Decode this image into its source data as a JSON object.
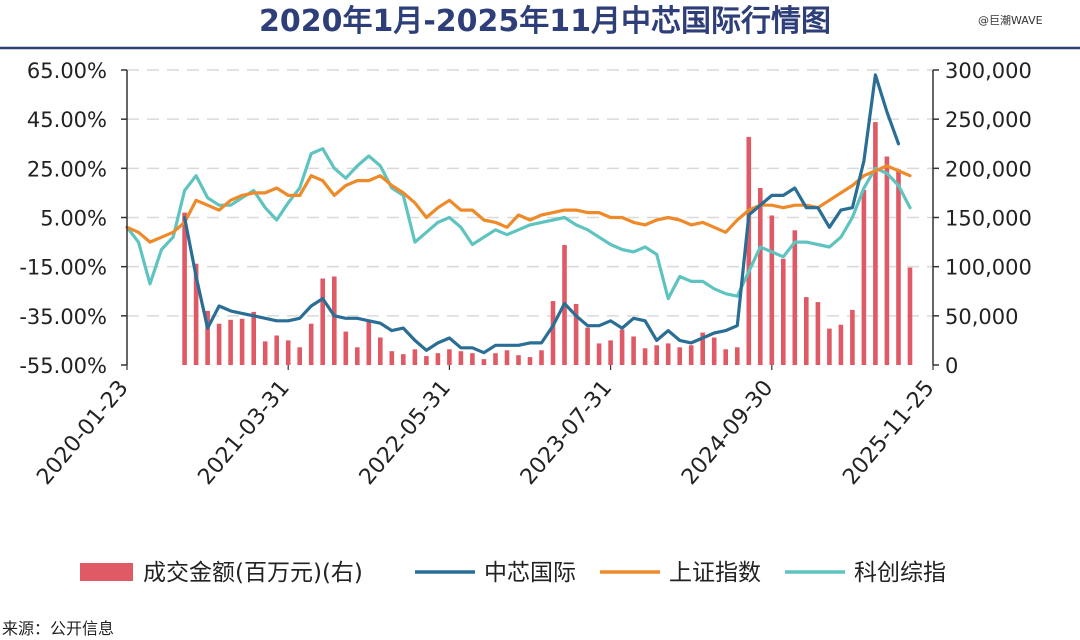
{
  "chart_data": {
    "type": "bar-line-combo",
    "title": "2020年1月-2025年11月中芯国际行情图",
    "watermark": "@巨潮WAVE",
    "source": "来源：公开信息",
    "x_ticks": [
      "2020-01-23",
      "2021-03-31",
      "2022-05-31",
      "2023-07-31",
      "2024-09-30",
      "2025-11-25"
    ],
    "y_left": {
      "ticks": [
        "65.00%",
        "45.00%",
        "25.00%",
        "5.00%",
        "-15.00%",
        "-35.00%",
        "-55.00%"
      ],
      "range": [
        -55,
        65
      ]
    },
    "y_right": {
      "ticks": [
        "300,000",
        "250,000",
        "200,000",
        "150,000",
        "100,000",
        "50,000",
        "0"
      ],
      "range": [
        0,
        300000
      ]
    },
    "legend": [
      {
        "name": "成交金额(百万元)(右)",
        "kind": "bar",
        "color": "#df5a64"
      },
      {
        "name": "中芯国际",
        "kind": "line",
        "color": "#2a6e96"
      },
      {
        "name": "上证指数",
        "kind": "line",
        "color": "#ee8a2a"
      },
      {
        "name": "科创综指",
        "kind": "line",
        "color": "#5fc4c0"
      }
    ],
    "colors": {
      "axis": "#333333",
      "grid": "#d9d9d9",
      "title": "#2d3e78",
      "divider": "#2d3e78"
    },
    "note": "横轴为月度序列，0 = 2020-01，70 = 2025-11；左轴为区间涨跌幅(%)，右轴为成交金额",
    "bars": [
      {
        "x": 5,
        "y": 155000
      },
      {
        "x": 6,
        "y": 103000
      },
      {
        "x": 7,
        "y": 55000
      },
      {
        "x": 8,
        "y": 42000
      },
      {
        "x": 9,
        "y": 46000
      },
      {
        "x": 10,
        "y": 47000
      },
      {
        "x": 11,
        "y": 54000
      },
      {
        "x": 12,
        "y": 24000
      },
      {
        "x": 13,
        "y": 30000
      },
      {
        "x": 14,
        "y": 25000
      },
      {
        "x": 15,
        "y": 18000
      },
      {
        "x": 16,
        "y": 42000
      },
      {
        "x": 17,
        "y": 88000
      },
      {
        "x": 18,
        "y": 90000
      },
      {
        "x": 19,
        "y": 34000
      },
      {
        "x": 20,
        "y": 18000
      },
      {
        "x": 21,
        "y": 45000
      },
      {
        "x": 22,
        "y": 28000
      },
      {
        "x": 23,
        "y": 14000
      },
      {
        "x": 24,
        "y": 11000
      },
      {
        "x": 25,
        "y": 16000
      },
      {
        "x": 26,
        "y": 9000
      },
      {
        "x": 27,
        "y": 12000
      },
      {
        "x": 28,
        "y": 16000
      },
      {
        "x": 29,
        "y": 14000
      },
      {
        "x": 30,
        "y": 12000
      },
      {
        "x": 31,
        "y": 6000
      },
      {
        "x": 32,
        "y": 12000
      },
      {
        "x": 33,
        "y": 15000
      },
      {
        "x": 34,
        "y": 10000
      },
      {
        "x": 35,
        "y": 8000
      },
      {
        "x": 36,
        "y": 15000
      },
      {
        "x": 37,
        "y": 65000
      },
      {
        "x": 38,
        "y": 122000
      },
      {
        "x": 39,
        "y": 62000
      },
      {
        "x": 40,
        "y": 38000
      },
      {
        "x": 41,
        "y": 22000
      },
      {
        "x": 42,
        "y": 25000
      },
      {
        "x": 43,
        "y": 36000
      },
      {
        "x": 44,
        "y": 29000
      },
      {
        "x": 45,
        "y": 17000
      },
      {
        "x": 46,
        "y": 20000
      },
      {
        "x": 47,
        "y": 22000
      },
      {
        "x": 48,
        "y": 18000
      },
      {
        "x": 49,
        "y": 20000
      },
      {
        "x": 50,
        "y": 33000
      },
      {
        "x": 51,
        "y": 28000
      },
      {
        "x": 52,
        "y": 16000
      },
      {
        "x": 53,
        "y": 18000
      },
      {
        "x": 54,
        "y": 232000
      },
      {
        "x": 55,
        "y": 180000
      },
      {
        "x": 56,
        "y": 152000
      },
      {
        "x": 57,
        "y": 108000
      },
      {
        "x": 58,
        "y": 137000
      },
      {
        "x": 59,
        "y": 69000
      },
      {
        "x": 60,
        "y": 64000
      },
      {
        "x": 61,
        "y": 37000
      },
      {
        "x": 62,
        "y": 41000
      },
      {
        "x": 63,
        "y": 56000
      },
      {
        "x": 64,
        "y": 178000
      },
      {
        "x": 65,
        "y": 247000
      },
      {
        "x": 66,
        "y": 212000
      },
      {
        "x": 67,
        "y": 199000
      },
      {
        "x": 68,
        "y": 99000
      }
    ],
    "series": [
      {
        "name": "中芯国际",
        "points": [
          [
            5,
            5
          ],
          [
            6,
            -19
          ],
          [
            7,
            -40
          ],
          [
            8,
            -31
          ],
          [
            9,
            -33
          ],
          [
            10,
            -34
          ],
          [
            11,
            -35
          ],
          [
            12,
            -36
          ],
          [
            13,
            -37
          ],
          [
            14,
            -37
          ],
          [
            15,
            -36
          ],
          [
            16,
            -31
          ],
          [
            17,
            -28
          ],
          [
            18,
            -35
          ],
          [
            19,
            -36
          ],
          [
            20,
            -36
          ],
          [
            21,
            -37
          ],
          [
            22,
            -38
          ],
          [
            23,
            -41
          ],
          [
            24,
            -40
          ],
          [
            25,
            -45
          ],
          [
            26,
            -49
          ],
          [
            27,
            -46
          ],
          [
            28,
            -44
          ],
          [
            29,
            -48
          ],
          [
            30,
            -48
          ],
          [
            31,
            -50
          ],
          [
            32,
            -47
          ],
          [
            33,
            -47
          ],
          [
            34,
            -47
          ],
          [
            35,
            -46
          ],
          [
            36,
            -46
          ],
          [
            37,
            -39
          ],
          [
            38,
            -30
          ],
          [
            39,
            -35
          ],
          [
            40,
            -39
          ],
          [
            41,
            -39
          ],
          [
            42,
            -37
          ],
          [
            43,
            -40
          ],
          [
            44,
            -36
          ],
          [
            45,
            -37
          ],
          [
            46,
            -45
          ],
          [
            47,
            -41
          ],
          [
            48,
            -45
          ],
          [
            49,
            -46
          ],
          [
            50,
            -44
          ],
          [
            51,
            -42
          ],
          [
            52,
            -41
          ],
          [
            53,
            -39
          ],
          [
            54,
            6
          ],
          [
            55,
            10
          ],
          [
            56,
            14
          ],
          [
            57,
            14
          ],
          [
            58,
            17
          ],
          [
            59,
            9
          ],
          [
            60,
            9
          ],
          [
            61,
            1
          ],
          [
            62,
            8
          ],
          [
            63,
            9
          ],
          [
            64,
            28
          ],
          [
            65,
            63
          ],
          [
            66,
            48
          ],
          [
            67,
            35
          ]
        ]
      },
      {
        "name": "上证指数",
        "points": [
          [
            0,
            1
          ],
          [
            1,
            -1
          ],
          [
            2,
            -5
          ],
          [
            3,
            -3
          ],
          [
            4,
            -1
          ],
          [
            5,
            3
          ],
          [
            6,
            12
          ],
          [
            7,
            10
          ],
          [
            8,
            8
          ],
          [
            9,
            12
          ],
          [
            10,
            14
          ],
          [
            11,
            15
          ],
          [
            12,
            15
          ],
          [
            13,
            17
          ],
          [
            14,
            14
          ],
          [
            15,
            14
          ],
          [
            16,
            22
          ],
          [
            17,
            20
          ],
          [
            18,
            14
          ],
          [
            19,
            18
          ],
          [
            20,
            20
          ],
          [
            21,
            20
          ],
          [
            22,
            22
          ],
          [
            23,
            18
          ],
          [
            24,
            15
          ],
          [
            25,
            11
          ],
          [
            26,
            5
          ],
          [
            27,
            9
          ],
          [
            28,
            12
          ],
          [
            29,
            8
          ],
          [
            30,
            8
          ],
          [
            31,
            4
          ],
          [
            32,
            3
          ],
          [
            33,
            1
          ],
          [
            34,
            6
          ],
          [
            35,
            4
          ],
          [
            36,
            6
          ],
          [
            37,
            7
          ],
          [
            38,
            8
          ],
          [
            39,
            8
          ],
          [
            40,
            7
          ],
          [
            41,
            7
          ],
          [
            42,
            5
          ],
          [
            43,
            5
          ],
          [
            44,
            3
          ],
          [
            45,
            2
          ],
          [
            46,
            4
          ],
          [
            47,
            5
          ],
          [
            48,
            4
          ],
          [
            49,
            2
          ],
          [
            50,
            3
          ],
          [
            51,
            1
          ],
          [
            52,
            -1
          ],
          [
            53,
            4
          ],
          [
            54,
            8
          ],
          [
            55,
            10
          ],
          [
            56,
            10
          ],
          [
            57,
            9
          ],
          [
            58,
            10
          ],
          [
            59,
            10
          ],
          [
            60,
            9
          ],
          [
            61,
            12
          ],
          [
            62,
            15
          ],
          [
            63,
            18
          ],
          [
            64,
            22
          ],
          [
            65,
            24
          ],
          [
            66,
            26
          ],
          [
            67,
            24
          ],
          [
            68,
            22
          ]
        ]
      },
      {
        "name": "科创综指",
        "points": [
          [
            0,
            1
          ],
          [
            1,
            -5
          ],
          [
            2,
            -22
          ],
          [
            3,
            -8
          ],
          [
            4,
            -3
          ],
          [
            5,
            16
          ],
          [
            6,
            22
          ],
          [
            7,
            13
          ],
          [
            8,
            10
          ],
          [
            9,
            10
          ],
          [
            10,
            13
          ],
          [
            11,
            16
          ],
          [
            12,
            9
          ],
          [
            13,
            4
          ],
          [
            14,
            11
          ],
          [
            15,
            17
          ],
          [
            16,
            31
          ],
          [
            17,
            33
          ],
          [
            18,
            25
          ],
          [
            19,
            21
          ],
          [
            20,
            26
          ],
          [
            21,
            30
          ],
          [
            22,
            26
          ],
          [
            23,
            17
          ],
          [
            24,
            14
          ],
          [
            25,
            -5
          ],
          [
            26,
            -1
          ],
          [
            27,
            3
          ],
          [
            28,
            5
          ],
          [
            29,
            1
          ],
          [
            30,
            -6
          ],
          [
            31,
            -3
          ],
          [
            32,
            0
          ],
          [
            33,
            -2
          ],
          [
            34,
            0
          ],
          [
            35,
            2
          ],
          [
            36,
            3
          ],
          [
            37,
            4
          ],
          [
            38,
            5
          ],
          [
            39,
            2
          ],
          [
            40,
            0
          ],
          [
            41,
            -3
          ],
          [
            42,
            -6
          ],
          [
            43,
            -8
          ],
          [
            44,
            -9
          ],
          [
            45,
            -7
          ],
          [
            46,
            -10
          ],
          [
            47,
            -28
          ],
          [
            48,
            -19
          ],
          [
            49,
            -21
          ],
          [
            50,
            -21
          ],
          [
            51,
            -24
          ],
          [
            52,
            -26
          ],
          [
            53,
            -27
          ],
          [
            54,
            -17
          ],
          [
            55,
            -7
          ],
          [
            56,
            -9
          ],
          [
            57,
            -11
          ],
          [
            58,
            -5
          ],
          [
            59,
            -5
          ],
          [
            60,
            -6
          ],
          [
            61,
            -7
          ],
          [
            62,
            -3
          ],
          [
            63,
            5
          ],
          [
            64,
            17
          ],
          [
            65,
            25
          ],
          [
            66,
            23
          ],
          [
            67,
            18
          ],
          [
            68,
            9
          ]
        ]
      }
    ]
  }
}
